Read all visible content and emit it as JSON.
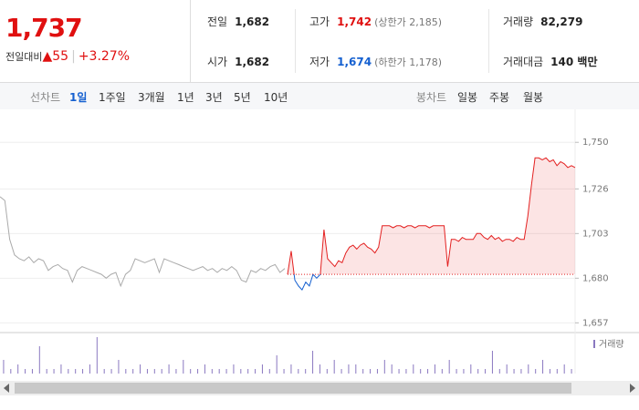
{
  "quote": {
    "price": "1,737",
    "change_label": "전일대비",
    "change": "55",
    "change_pct": "+3.27%"
  },
  "stats": [
    [
      {
        "label": "전일",
        "value": "1,682"
      },
      {
        "label": "고가",
        "value": "1,742",
        "extra": "(상한가 2,185)",
        "tone": "up"
      },
      {
        "label": "거래량",
        "value": "82,279"
      }
    ],
    [
      {
        "label": "시가",
        "value": "1,682"
      },
      {
        "label": "저가",
        "value": "1,674",
        "extra": "(하한가 1,178)",
        "tone": "dn"
      },
      {
        "label": "거래대금",
        "value": "140 백만"
      }
    ]
  ],
  "tabs": {
    "line_head": "선차트",
    "line": [
      "1일",
      "1주일",
      "3개월",
      "1년",
      "3년",
      "5년",
      "10년"
    ],
    "candle_head": "봉차트",
    "candle": [
      "일봉",
      "주봉",
      "월봉"
    ]
  },
  "chart_data": {
    "type": "line",
    "ylim": [
      1652,
      1767
    ],
    "yticks": [
      {
        "value": 1657,
        "label": "1,657"
      },
      {
        "value": 1680,
        "label": "1,680"
      },
      {
        "value": 1703,
        "label": "1,703"
      },
      {
        "value": 1726,
        "label": "1,726"
      },
      {
        "value": 1750,
        "label": "1,750"
      }
    ],
    "grid": true,
    "reference": 1682,
    "up_color": "#e32020",
    "down_color": "#1560d0",
    "series": [
      {
        "color": "#aaaaaa",
        "values": [
          1722,
          1720,
          1700,
          1692,
          1690,
          1689,
          1691,
          1688,
          1690,
          1689,
          1684,
          1686,
          1687,
          1685,
          1684,
          1678,
          1684,
          1686,
          1685,
          1684,
          1683,
          1682,
          1680,
          1682,
          1683,
          1676,
          1682,
          1684,
          1690,
          1689,
          1688,
          1689,
          1690,
          1683,
          1690,
          1689,
          1688,
          1687,
          1686,
          1685,
          1684,
          1685,
          1686,
          1684,
          1685,
          1683,
          1685,
          1684,
          1686,
          1684,
          1679,
          1678,
          1684,
          1683,
          1685,
          1684,
          1686,
          1687,
          1683,
          1685
        ]
      },
      {
        "color": "#e32020",
        "values": [
          1682,
          1694,
          1679,
          1676,
          1674,
          1678,
          1676,
          1682,
          1680,
          1682,
          1705,
          1690,
          1688,
          1686,
          1689,
          1688,
          1693,
          1696,
          1697,
          1695,
          1697,
          1698,
          1696,
          1695,
          1693,
          1696,
          1707,
          1707,
          1707,
          1706,
          1707,
          1707,
          1706,
          1707,
          1707,
          1706,
          1707,
          1707,
          1707,
          1706,
          1707,
          1707,
          1707,
          1707,
          1686,
          1700,
          1700,
          1699,
          1701,
          1700,
          1700,
          1700,
          1703,
          1703,
          1701,
          1700,
          1702,
          1700,
          1701,
          1699,
          1700,
          1700,
          1699,
          1701,
          1700,
          1700,
          1712,
          1728,
          1742,
          1742,
          1741,
          1742,
          1740,
          1741,
          1738,
          1740,
          1739,
          1737,
          1738,
          1737
        ]
      }
    ],
    "volume_label": "거래량",
    "volume_color": "#8a78c0",
    "volume": [
      3,
      1,
      2,
      1,
      1,
      6,
      1,
      1,
      2,
      1,
      1,
      1,
      2,
      8,
      1,
      1,
      3,
      1,
      1,
      2,
      1,
      1,
      1,
      2,
      1,
      3,
      1,
      1,
      2,
      1,
      1,
      1,
      2,
      1,
      1,
      1,
      2,
      1,
      4,
      1,
      2,
      1,
      1,
      5,
      2,
      1,
      3,
      1,
      2,
      2,
      1,
      1,
      1,
      3,
      2,
      1,
      1,
      2,
      1,
      1,
      2,
      1,
      3,
      1,
      1,
      2,
      1,
      1,
      5,
      1,
      2,
      1,
      1,
      2,
      1,
      3,
      1,
      1,
      2,
      1
    ]
  }
}
